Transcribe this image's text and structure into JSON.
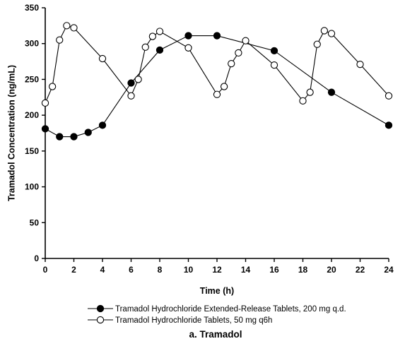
{
  "chart_data": {
    "type": "line",
    "title": "",
    "caption": "a. Tramadol",
    "xlabel": "Time (h)",
    "ylabel": "Tramadol Concentration (ng/mL)",
    "xlim": [
      0,
      24
    ],
    "ylim": [
      0,
      350
    ],
    "xticks": [
      0,
      2,
      4,
      6,
      8,
      10,
      12,
      14,
      16,
      18,
      20,
      22,
      24
    ],
    "yticks": [
      0,
      50,
      100,
      150,
      200,
      250,
      300,
      350
    ],
    "grid": false,
    "legend_position": "bottom",
    "series": [
      {
        "name": "Tramadol Hydrochloride Extended-Release Tablets, 200 mg q.d.",
        "marker": "filled-circle",
        "color": "#000000",
        "x": [
          0,
          1,
          2,
          3,
          4,
          6,
          8,
          10,
          12,
          16,
          20,
          24
        ],
        "y": [
          181,
          170,
          170,
          176,
          186,
          245,
          291,
          311,
          311,
          290,
          232,
          186
        ]
      },
      {
        "name": "Tramadol Hydrochloride Tablets, 50 mg q6h",
        "marker": "open-circle",
        "color": "#000000",
        "x": [
          0,
          0.5,
          1,
          1.5,
          2,
          4,
          6,
          6.5,
          7,
          7.5,
          8,
          10,
          12,
          12.5,
          13,
          13.5,
          14,
          16,
          18,
          18.5,
          19,
          19.5,
          20,
          22,
          24
        ],
        "y": [
          217,
          240,
          305,
          325,
          322,
          279,
          227,
          250,
          295,
          310,
          317,
          294,
          229,
          240,
          272,
          287,
          304,
          270,
          220,
          232,
          299,
          318,
          314,
          271,
          227
        ]
      }
    ]
  }
}
